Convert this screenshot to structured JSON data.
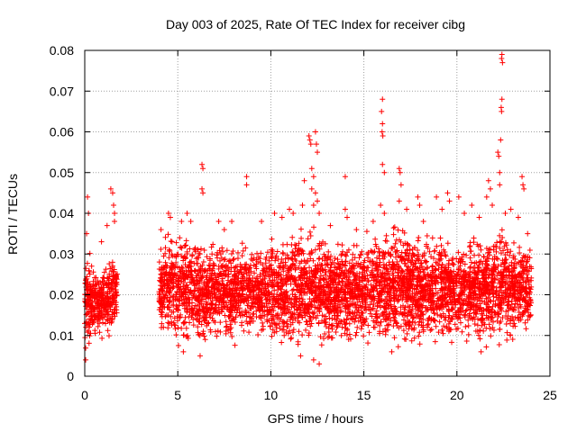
{
  "chart_data": {
    "type": "scatter",
    "title": "Day 003 of 2025, Rate Of TEC Index for receiver cibg",
    "xlabel": "GPS time / hours",
    "ylabel": "ROTI / TECUs",
    "xlim": [
      0,
      25
    ],
    "ylim": [
      0,
      0.08
    ],
    "xticks": [
      "0",
      "5",
      "10",
      "15",
      "20",
      "25"
    ],
    "yticks": [
      "0",
      "0.01",
      "0.02",
      "0.03",
      "0.04",
      "0.05",
      "0.06",
      "0.07",
      "0.08"
    ],
    "grid": true,
    "marker": "+",
    "color": "#ff0000",
    "envelope": {
      "x": [
        0.0,
        0.25,
        0.5,
        0.75,
        1.0,
        1.25,
        1.5,
        1.75,
        4.0,
        4.5,
        5.0,
        5.5,
        6.0,
        6.5,
        7.0,
        7.5,
        8.0,
        8.5,
        9.0,
        9.5,
        10.0,
        10.5,
        11.0,
        11.5,
        12.0,
        12.5,
        13.0,
        13.5,
        14.0,
        14.5,
        15.0,
        15.5,
        16.0,
        16.5,
        17.0,
        17.5,
        18.0,
        18.5,
        19.0,
        19.5,
        20.0,
        20.5,
        21.0,
        21.5,
        22.0,
        22.5,
        23.0,
        23.5,
        24.0
      ],
      "y_low": [
        0.006,
        0.008,
        0.01,
        0.01,
        0.01,
        0.009,
        0.01,
        0.01,
        0.01,
        0.01,
        0.008,
        0.008,
        0.007,
        0.007,
        0.008,
        0.008,
        0.008,
        0.009,
        0.009,
        0.008,
        0.008,
        0.008,
        0.006,
        0.007,
        0.006,
        0.008,
        0.008,
        0.008,
        0.008,
        0.008,
        0.007,
        0.008,
        0.008,
        0.008,
        0.007,
        0.007,
        0.007,
        0.007,
        0.008,
        0.008,
        0.008,
        0.008,
        0.008,
        0.008,
        0.008,
        0.008,
        0.008,
        0.008,
        0.01
      ],
      "y_high": [
        0.028,
        0.03,
        0.026,
        0.025,
        0.028,
        0.029,
        0.032,
        0.03,
        0.031,
        0.035,
        0.036,
        0.036,
        0.035,
        0.033,
        0.034,
        0.034,
        0.032,
        0.033,
        0.032,
        0.032,
        0.034,
        0.033,
        0.035,
        0.037,
        0.036,
        0.035,
        0.033,
        0.032,
        0.034,
        0.034,
        0.035,
        0.036,
        0.036,
        0.037,
        0.038,
        0.036,
        0.035,
        0.035,
        0.035,
        0.034,
        0.033,
        0.034,
        0.034,
        0.035,
        0.036,
        0.037,
        0.035,
        0.034,
        0.033
      ]
    },
    "spikes": [
      {
        "x": 0.15,
        "y": 0.044
      },
      {
        "x": 0.2,
        "y": 0.04
      },
      {
        "x": 0.1,
        "y": 0.035
      },
      {
        "x": 0.9,
        "y": 0.033
      },
      {
        "x": 1.2,
        "y": 0.037
      },
      {
        "x": 1.4,
        "y": 0.046
      },
      {
        "x": 1.5,
        "y": 0.045
      },
      {
        "x": 1.55,
        "y": 0.042
      },
      {
        "x": 1.6,
        "y": 0.04
      },
      {
        "x": 1.6,
        "y": 0.038
      },
      {
        "x": 4.1,
        "y": 0.036
      },
      {
        "x": 4.5,
        "y": 0.04
      },
      {
        "x": 4.6,
        "y": 0.039
      },
      {
        "x": 5.2,
        "y": 0.038
      },
      {
        "x": 5.5,
        "y": 0.04
      },
      {
        "x": 5.7,
        "y": 0.038
      },
      {
        "x": 6.3,
        "y": 0.052
      },
      {
        "x": 6.35,
        "y": 0.051
      },
      {
        "x": 6.3,
        "y": 0.046
      },
      {
        "x": 6.35,
        "y": 0.045
      },
      {
        "x": 7.2,
        "y": 0.038
      },
      {
        "x": 7.5,
        "y": 0.036
      },
      {
        "x": 7.9,
        "y": 0.038
      },
      {
        "x": 8.7,
        "y": 0.049
      },
      {
        "x": 8.7,
        "y": 0.047
      },
      {
        "x": 9.5,
        "y": 0.038
      },
      {
        "x": 10.2,
        "y": 0.04
      },
      {
        "x": 10.6,
        "y": 0.039
      },
      {
        "x": 11.0,
        "y": 0.041
      },
      {
        "x": 11.2,
        "y": 0.04
      },
      {
        "x": 11.7,
        "y": 0.042
      },
      {
        "x": 11.8,
        "y": 0.048
      },
      {
        "x": 12.05,
        "y": 0.059
      },
      {
        "x": 12.1,
        "y": 0.058
      },
      {
        "x": 12.15,
        "y": 0.057
      },
      {
        "x": 12.4,
        "y": 0.06
      },
      {
        "x": 12.45,
        "y": 0.057
      },
      {
        "x": 12.5,
        "y": 0.055
      },
      {
        "x": 12.2,
        "y": 0.051
      },
      {
        "x": 12.3,
        "y": 0.049
      },
      {
        "x": 12.2,
        "y": 0.046
      },
      {
        "x": 12.4,
        "y": 0.045
      },
      {
        "x": 12.5,
        "y": 0.043
      },
      {
        "x": 12.3,
        "y": 0.042
      },
      {
        "x": 12.6,
        "y": 0.04
      },
      {
        "x": 13.2,
        "y": 0.037
      },
      {
        "x": 14.0,
        "y": 0.049
      },
      {
        "x": 14.0,
        "y": 0.041
      },
      {
        "x": 14.1,
        "y": 0.039
      },
      {
        "x": 14.6,
        "y": 0.036
      },
      {
        "x": 15.5,
        "y": 0.038
      },
      {
        "x": 16.0,
        "y": 0.068
      },
      {
        "x": 15.95,
        "y": 0.065
      },
      {
        "x": 16.0,
        "y": 0.062
      },
      {
        "x": 15.98,
        "y": 0.06
      },
      {
        "x": 16.02,
        "y": 0.059
      },
      {
        "x": 16.0,
        "y": 0.052
      },
      {
        "x": 16.1,
        "y": 0.05
      },
      {
        "x": 15.9,
        "y": 0.042
      },
      {
        "x": 16.1,
        "y": 0.04
      },
      {
        "x": 16.9,
        "y": 0.051
      },
      {
        "x": 16.95,
        "y": 0.05
      },
      {
        "x": 17.0,
        "y": 0.047
      },
      {
        "x": 16.9,
        "y": 0.043
      },
      {
        "x": 17.3,
        "y": 0.041
      },
      {
        "x": 17.9,
        "y": 0.044
      },
      {
        "x": 18.0,
        "y": 0.042
      },
      {
        "x": 18.2,
        "y": 0.038
      },
      {
        "x": 18.9,
        "y": 0.044
      },
      {
        "x": 19.2,
        "y": 0.041
      },
      {
        "x": 19.5,
        "y": 0.045
      },
      {
        "x": 19.6,
        "y": 0.043
      },
      {
        "x": 20.1,
        "y": 0.044
      },
      {
        "x": 20.4,
        "y": 0.04
      },
      {
        "x": 20.8,
        "y": 0.042
      },
      {
        "x": 21.2,
        "y": 0.039
      },
      {
        "x": 21.6,
        "y": 0.044
      },
      {
        "x": 21.7,
        "y": 0.048
      },
      {
        "x": 21.8,
        "y": 0.046
      },
      {
        "x": 21.9,
        "y": 0.042
      },
      {
        "x": 22.2,
        "y": 0.055
      },
      {
        "x": 22.25,
        "y": 0.054
      },
      {
        "x": 22.3,
        "y": 0.05
      },
      {
        "x": 22.3,
        "y": 0.047
      },
      {
        "x": 22.35,
        "y": 0.058
      },
      {
        "x": 22.4,
        "y": 0.065
      },
      {
        "x": 22.38,
        "y": 0.066
      },
      {
        "x": 22.42,
        "y": 0.068
      },
      {
        "x": 22.4,
        "y": 0.078
      },
      {
        "x": 22.42,
        "y": 0.079
      },
      {
        "x": 22.45,
        "y": 0.077
      },
      {
        "x": 22.6,
        "y": 0.04
      },
      {
        "x": 22.9,
        "y": 0.041
      },
      {
        "x": 23.3,
        "y": 0.039
      },
      {
        "x": 23.5,
        "y": 0.049
      },
      {
        "x": 23.55,
        "y": 0.047
      },
      {
        "x": 23.6,
        "y": 0.046
      },
      {
        "x": 23.8,
        "y": 0.035
      },
      {
        "x": 0.05,
        "y": 0.004
      },
      {
        "x": 5.3,
        "y": 0.006
      },
      {
        "x": 6.2,
        "y": 0.005
      },
      {
        "x": 11.6,
        "y": 0.005
      },
      {
        "x": 12.3,
        "y": 0.004
      },
      {
        "x": 12.6,
        "y": 0.003
      },
      {
        "x": 16.5,
        "y": 0.006
      },
      {
        "x": 21.3,
        "y": 0.006
      }
    ],
    "gaps": [
      [
        1.75,
        4.0
      ],
      [
        24.0,
        25.0
      ]
    ]
  }
}
